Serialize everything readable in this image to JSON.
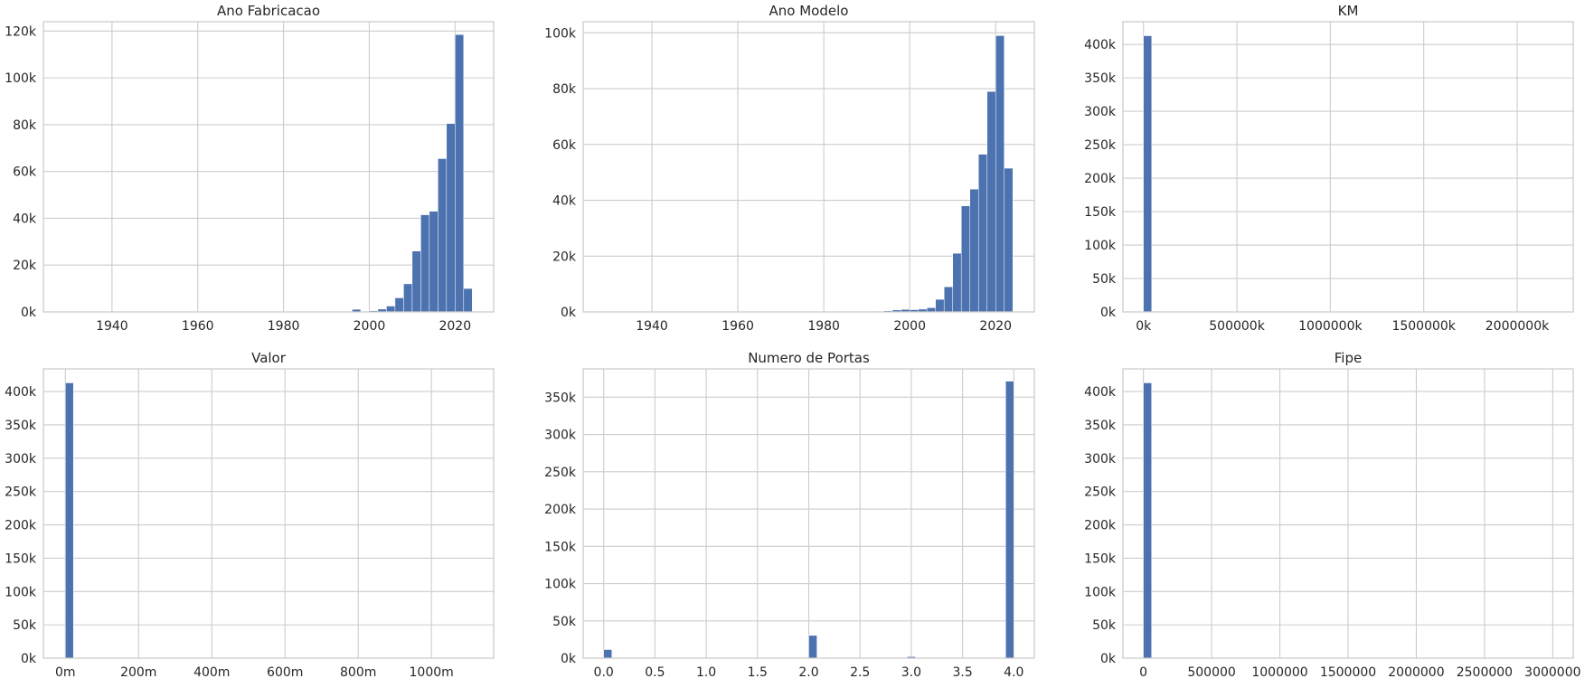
{
  "chart_data": [
    {
      "type": "bar",
      "title": "Ano Fabricacao",
      "xlabel": "",
      "ylabel": "",
      "xlim": [
        1924,
        2029
      ],
      "ylim": [
        0,
        124000
      ],
      "grid": true,
      "xticks": [
        1940,
        1960,
        1980,
        2000,
        2020
      ],
      "xtick_labels": [
        "1940",
        "1960",
        "1980",
        "2000",
        "2020"
      ],
      "yticks": [
        0,
        20000,
        40000,
        60000,
        80000,
        100000,
        120000
      ],
      "ytick_labels": [
        "0k",
        "20k",
        "40k",
        "60k",
        "80k",
        "100k",
        "120k"
      ],
      "bins": {
        "start": 1928,
        "width": 2,
        "count": 48
      },
      "values": [
        0,
        0,
        0,
        0,
        0,
        0,
        0,
        0,
        0,
        0,
        0,
        0,
        0,
        0,
        0,
        0,
        0,
        0,
        0,
        0,
        0,
        0,
        0,
        0,
        0,
        0,
        0,
        0,
        0,
        0,
        0,
        0,
        100,
        300,
        1100,
        300,
        500,
        1200,
        2500,
        6000,
        12000,
        26000,
        41500,
        43000,
        65500,
        80500,
        118500,
        10000
      ]
    },
    {
      "type": "bar",
      "title": "Ano Modelo",
      "xlabel": "",
      "ylabel": "",
      "xlim": [
        1924,
        2029
      ],
      "ylim": [
        0,
        104000
      ],
      "grid": true,
      "xticks": [
        1940,
        1960,
        1980,
        2000,
        2020
      ],
      "xtick_labels": [
        "1940",
        "1960",
        "1980",
        "2000",
        "2020"
      ],
      "yticks": [
        0,
        20000,
        40000,
        60000,
        80000,
        100000
      ],
      "ytick_labels": [
        "0k",
        "20k",
        "40k",
        "60k",
        "80k",
        "100k"
      ],
      "bins": {
        "start": 1928,
        "width": 2,
        "count": 48
      },
      "values": [
        0,
        0,
        0,
        0,
        0,
        0,
        0,
        0,
        0,
        0,
        0,
        0,
        0,
        0,
        0,
        0,
        0,
        0,
        0,
        0,
        0,
        0,
        0,
        0,
        0,
        0,
        0,
        0,
        0,
        0,
        0,
        100,
        200,
        400,
        700,
        900,
        800,
        1000,
        1500,
        4500,
        9000,
        21000,
        38000,
        44000,
        56500,
        79000,
        99000,
        51500
      ]
    },
    {
      "type": "bar",
      "title": "KM",
      "xlabel": "",
      "ylabel": "",
      "xlim": [
        -110000,
        2300000
      ],
      "ylim": [
        0,
        434000
      ],
      "grid": true,
      "xticks": [
        0,
        500000,
        1000000,
        1500000,
        2000000
      ],
      "xtick_labels": [
        "0k",
        "500000k",
        "1000000k",
        "1500000k",
        "2000000k"
      ],
      "yticks": [
        0,
        50000,
        100000,
        150000,
        200000,
        250000,
        300000,
        350000,
        400000
      ],
      "ytick_labels": [
        "0k",
        "50k",
        "100k",
        "150k",
        "200k",
        "250k",
        "300k",
        "350k",
        "400k"
      ],
      "bins": {
        "start": 0,
        "width": 44000,
        "count": 50
      },
      "values": [
        413000,
        800,
        300,
        0,
        0,
        0,
        0,
        0,
        0,
        0,
        0,
        0,
        0,
        0,
        0,
        0,
        0,
        0,
        0,
        0,
        0,
        0,
        0,
        0,
        0,
        0,
        0,
        0,
        0,
        0,
        0,
        0,
        0,
        0,
        0,
        0,
        0,
        0,
        0,
        0,
        0,
        0,
        0,
        0,
        0,
        0,
        0,
        0,
        0,
        0
      ]
    },
    {
      "type": "bar",
      "title": "Valor",
      "xlabel": "",
      "ylabel": "",
      "xlim": [
        -60,
        1170
      ],
      "ylim": [
        0,
        434000
      ],
      "grid": true,
      "xticks": [
        0,
        200,
        400,
        600,
        800,
        1000
      ],
      "xtick_labels": [
        "0m",
        "200m",
        "400m",
        "600m",
        "800m",
        "1000m"
      ],
      "yticks": [
        0,
        50000,
        100000,
        150000,
        200000,
        250000,
        300000,
        350000,
        400000
      ],
      "ytick_labels": [
        "0k",
        "50k",
        "100k",
        "150k",
        "200k",
        "250k",
        "300k",
        "350k",
        "400k"
      ],
      "bins": {
        "start": 0,
        "width": 22,
        "count": 50
      },
      "values": [
        413000,
        0,
        0,
        0,
        0,
        0,
        0,
        0,
        0,
        0,
        0,
        0,
        0,
        0,
        0,
        0,
        0,
        0,
        0,
        0,
        0,
        0,
        0,
        0,
        0,
        0,
        0,
        0,
        0,
        0,
        0,
        0,
        0,
        0,
        0,
        0,
        0,
        0,
        0,
        0,
        0,
        0,
        0,
        0,
        0,
        0,
        0,
        0,
        0,
        0
      ]
    },
    {
      "type": "bar",
      "title": "Numero de Portas",
      "xlabel": "",
      "ylabel": "",
      "xlim": [
        -0.2,
        4.2
      ],
      "ylim": [
        0,
        388000
      ],
      "grid": true,
      "xticks": [
        0,
        0.5,
        1,
        1.5,
        2,
        2.5,
        3,
        3.5,
        4
      ],
      "xtick_labels": [
        "0.0",
        "0.5",
        "1.0",
        "1.5",
        "2.0",
        "2.5",
        "3.0",
        "3.5",
        "4.0"
      ],
      "yticks": [
        0,
        50000,
        100000,
        150000,
        200000,
        250000,
        300000,
        350000
      ],
      "ytick_labels": [
        "0k",
        "50k",
        "100k",
        "150k",
        "200k",
        "250k",
        "300k",
        "350k"
      ],
      "bins": {
        "start": 0,
        "width": 0.08,
        "count": 50
      },
      "values": [
        11500,
        0,
        0,
        0,
        0,
        0,
        0,
        0,
        0,
        0,
        0,
        0,
        0,
        0,
        0,
        0,
        0,
        0,
        0,
        0,
        0,
        0,
        0,
        0,
        0,
        30500,
        0,
        0,
        0,
        0,
        0,
        0,
        0,
        0,
        0,
        0,
        0,
        2000,
        0,
        0,
        0,
        0,
        0,
        0,
        0,
        0,
        0,
        0,
        0,
        371500
      ]
    },
    {
      "type": "bar",
      "title": "Fipe",
      "xlabel": "",
      "ylabel": "",
      "xlim": [
        -150000,
        3150000
      ],
      "ylim": [
        0,
        434000
      ],
      "grid": true,
      "xticks": [
        0,
        500000,
        1000000,
        1500000,
        2000000,
        2500000,
        3000000
      ],
      "xtick_labels": [
        "0",
        "500000",
        "1000000",
        "1500000",
        "2000000",
        "2500000",
        "3000000"
      ],
      "yticks": [
        0,
        50000,
        100000,
        150000,
        200000,
        250000,
        300000,
        350000,
        400000
      ],
      "ytick_labels": [
        "0k",
        "50k",
        "100k",
        "150k",
        "200k",
        "250k",
        "300k",
        "350k",
        "400k"
      ],
      "bins": {
        "start": 0,
        "width": 60000,
        "count": 50
      },
      "values": [
        413000,
        0,
        0,
        0,
        0,
        0,
        0,
        0,
        0,
        0,
        0,
        0,
        0,
        0,
        0,
        0,
        0,
        0,
        0,
        0,
        0,
        0,
        0,
        0,
        0,
        0,
        0,
        0,
        0,
        0,
        0,
        0,
        0,
        0,
        0,
        0,
        0,
        0,
        0,
        0,
        0,
        0,
        0,
        0,
        0,
        0,
        0,
        0,
        0,
        0
      ]
    }
  ]
}
